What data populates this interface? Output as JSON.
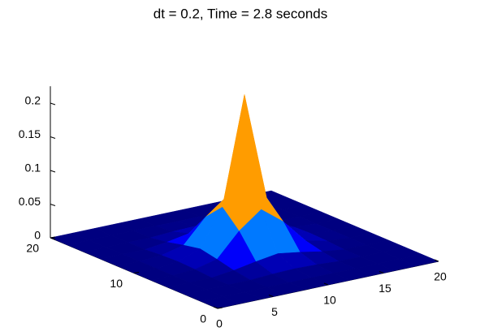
{
  "chart_data": {
    "type": "surface",
    "title": "dt = 0.2, Time = 2.8 seconds",
    "x": [
      0,
      2,
      4,
      6,
      8,
      10,
      12,
      14,
      16,
      18,
      20
    ],
    "y": [
      0,
      2,
      4,
      6,
      8,
      10,
      12,
      14,
      16,
      18,
      20
    ],
    "z": [
      [
        0,
        0,
        0,
        0,
        0,
        0,
        0,
        0,
        0,
        0,
        0
      ],
      [
        0,
        0,
        0,
        0,
        0,
        0,
        0,
        0,
        0,
        0,
        0
      ],
      [
        0,
        0,
        0,
        0,
        0.002,
        0.003,
        0.002,
        0,
        0,
        0,
        0
      ],
      [
        0,
        0,
        0,
        0.004,
        0.01,
        0.015,
        0.01,
        0.004,
        0,
        0,
        0
      ],
      [
        0,
        0,
        0.002,
        0.01,
        0.045,
        0.07,
        0.045,
        0.01,
        0.002,
        0,
        0
      ],
      [
        0,
        0,
        0.003,
        0.015,
        0.07,
        0.23,
        0.07,
        0.015,
        0.003,
        0,
        0
      ],
      [
        0,
        0,
        0.002,
        0.01,
        0.045,
        0.07,
        0.045,
        0.01,
        0.002,
        0,
        0
      ],
      [
        0,
        0,
        0,
        0.004,
        0.01,
        0.015,
        0.01,
        0.004,
        0,
        0,
        0
      ],
      [
        0,
        0,
        0,
        0,
        0.002,
        0.003,
        0.002,
        0,
        0,
        0,
        0
      ],
      [
        0,
        0,
        0,
        0,
        0,
        0,
        0,
        0,
        0,
        0,
        0
      ],
      [
        0,
        0,
        0,
        0,
        0,
        0,
        0,
        0,
        0,
        0,
        0
      ]
    ],
    "colormap": "jet",
    "xlim": [
      0,
      20
    ],
    "ylim": [
      0,
      20
    ],
    "zlim": [
      0,
      0.225
    ],
    "xticks": [
      0,
      5,
      10,
      15,
      20
    ],
    "yticks": [
      0,
      10,
      20
    ],
    "zticks": [
      0,
      0.05,
      0.1,
      0.15,
      0.2
    ]
  }
}
